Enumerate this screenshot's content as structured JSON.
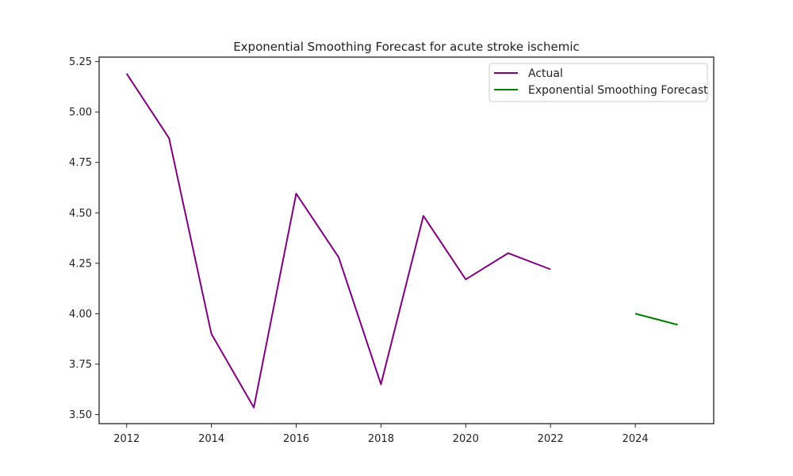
{
  "chart_data": {
    "type": "line",
    "title": "Exponential Smoothing Forecast for acute stroke ischemic",
    "xlabel": "",
    "ylabel": "",
    "xlim": [
      2011.35,
      2025.85
    ],
    "ylim": [
      3.455,
      5.272
    ],
    "x_ticks": [
      "2012",
      "2014",
      "2016",
      "2018",
      "2020",
      "2022",
      "2024"
    ],
    "y_ticks": [
      "3.50",
      "3.75",
      "4.00",
      "4.25",
      "4.50",
      "4.75",
      "5.00",
      "5.25"
    ],
    "grid": false,
    "legend_position": "top-right",
    "series": [
      {
        "name": "Actual",
        "color": "#800080",
        "x": [
          2012,
          2013,
          2014,
          2015,
          2016,
          2017,
          2018,
          2019,
          2020,
          2021,
          2022
        ],
        "y": [
          5.19,
          4.87,
          3.9,
          3.535,
          4.595,
          4.28,
          3.65,
          4.485,
          4.17,
          4.3,
          4.22
        ]
      },
      {
        "name": "Exponential Smoothing Forecast",
        "color": "#008000",
        "x": [
          2024,
          2025
        ],
        "y": [
          4.0,
          3.945
        ]
      }
    ]
  }
}
